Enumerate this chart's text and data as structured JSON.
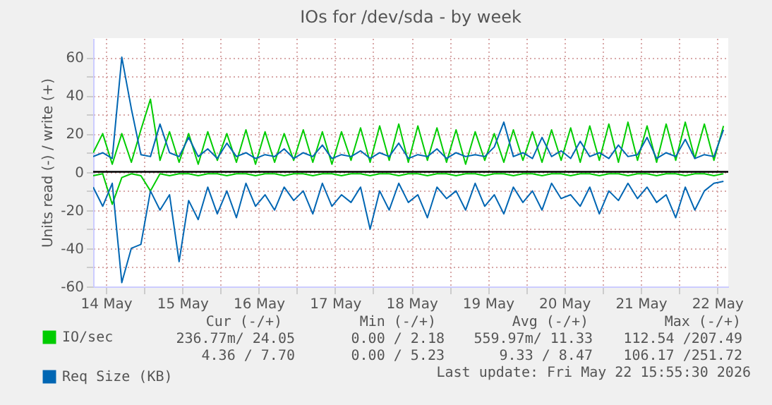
{
  "chart_data": {
    "type": "line",
    "title": "IOs for /dev/sda - by week",
    "ylabel": "Units read (-) / write (+)",
    "x": [
      "2026-05-14T08:00",
      "2026-05-14T11:00",
      "2026-05-14T14:00",
      "2026-05-14T17:00",
      "2026-05-14T20:00",
      "2026-05-14T23:00",
      "2026-05-15T02:00",
      "2026-05-15T05:00",
      "2026-05-15T08:00",
      "2026-05-15T11:00",
      "2026-05-15T14:00",
      "2026-05-15T17:00",
      "2026-05-15T20:00",
      "2026-05-15T23:00",
      "2026-05-16T02:00",
      "2026-05-16T05:00",
      "2026-05-16T08:00",
      "2026-05-16T11:00",
      "2026-05-16T14:00",
      "2026-05-16T17:00",
      "2026-05-16T20:00",
      "2026-05-16T23:00",
      "2026-05-17T02:00",
      "2026-05-17T05:00",
      "2026-05-17T08:00",
      "2026-05-17T11:00",
      "2026-05-17T14:00",
      "2026-05-17T17:00",
      "2026-05-17T20:00",
      "2026-05-17T23:00",
      "2026-05-18T02:00",
      "2026-05-18T05:00",
      "2026-05-18T08:00",
      "2026-05-18T11:00",
      "2026-05-18T14:00",
      "2026-05-18T17:00",
      "2026-05-18T20:00",
      "2026-05-18T23:00",
      "2026-05-19T02:00",
      "2026-05-19T05:00",
      "2026-05-19T08:00",
      "2026-05-19T11:00",
      "2026-05-19T14:00",
      "2026-05-19T17:00",
      "2026-05-19T20:00",
      "2026-05-19T23:00",
      "2026-05-20T02:00",
      "2026-05-20T05:00",
      "2026-05-20T08:00",
      "2026-05-20T11:00",
      "2026-05-20T14:00",
      "2026-05-20T17:00",
      "2026-05-20T20:00",
      "2026-05-20T23:00",
      "2026-05-21T02:00",
      "2026-05-21T05:00",
      "2026-05-21T08:00",
      "2026-05-21T11:00",
      "2026-05-21T14:00",
      "2026-05-21T17:00",
      "2026-05-21T20:00",
      "2026-05-21T23:00",
      "2026-05-22T02:00",
      "2026-05-22T05:00",
      "2026-05-22T08:00",
      "2026-05-22T11:00",
      "2026-05-22T14:00"
    ],
    "series": [
      {
        "name": "IO/sec",
        "color": "#00cc00",
        "values": [
          10,
          20,
          4,
          20,
          5,
          22,
          38,
          6,
          21,
          5,
          20,
          4,
          21,
          6,
          20,
          5,
          22,
          4,
          21,
          5,
          20,
          6,
          22,
          5,
          21,
          4,
          21,
          6,
          23,
          5,
          24,
          6,
          25,
          5,
          24,
          6,
          23,
          5,
          22,
          4,
          21,
          6,
          20,
          5,
          22,
          6,
          21,
          5,
          22,
          6,
          23,
          5,
          24,
          6,
          25,
          5,
          26,
          6,
          24,
          5,
          25,
          6,
          26,
          7,
          25,
          6,
          24
        ]
      },
      {
        "color": "#00cc00",
        "values": [
          -2,
          -1,
          -17,
          -3,
          -1,
          -2,
          -10,
          -1,
          -2,
          -1,
          -1,
          -2,
          -1,
          -1,
          -2,
          -1,
          -1,
          -2,
          -1,
          -1,
          -2,
          -1,
          -1,
          -2,
          -1,
          -1,
          -2,
          -1,
          -1,
          -2,
          -1,
          -1,
          -2,
          -1,
          -1,
          -2,
          -1,
          -1,
          -2,
          -1,
          -1,
          -2,
          -1,
          -1,
          -2,
          -1,
          -1,
          -2,
          -1,
          -1,
          -2,
          -1,
          -1,
          -2,
          -1,
          -1,
          -2,
          -1,
          -1,
          -2,
          -1,
          -1,
          -2,
          -1,
          -1,
          -2,
          -1
        ]
      },
      {
        "name": "Req Size (KB)",
        "color": "#0066b3",
        "values": [
          8,
          10,
          7,
          60,
          33,
          9,
          8,
          25,
          10,
          8,
          18,
          8,
          12,
          7,
          15,
          8,
          10,
          7,
          9,
          8,
          12,
          7,
          10,
          8,
          14,
          7,
          9,
          8,
          11,
          7,
          10,
          8,
          15,
          7,
          9,
          8,
          12,
          7,
          10,
          8,
          9,
          8,
          13,
          26,
          8,
          10,
          7,
          18,
          8,
          11,
          7,
          16,
          8,
          10,
          7,
          14,
          8,
          9,
          18,
          7,
          10,
          8,
          17,
          7,
          9,
          8,
          22
        ]
      },
      {
        "color": "#0066b3",
        "values": [
          -8,
          -18,
          -6,
          -58,
          -40,
          -38,
          -10,
          -20,
          -12,
          -47,
          -15,
          -25,
          -8,
          -22,
          -10,
          -24,
          -6,
          -18,
          -12,
          -20,
          -8,
          -15,
          -10,
          -22,
          -6,
          -18,
          -12,
          -16,
          -8,
          -30,
          -10,
          -20,
          -6,
          -16,
          -12,
          -24,
          -8,
          -14,
          -10,
          -20,
          -6,
          -18,
          -12,
          -22,
          -8,
          -16,
          -10,
          -20,
          -6,
          -14,
          -12,
          -18,
          -8,
          -22,
          -10,
          -15,
          -6,
          -14,
          -8,
          -16,
          -12,
          -24,
          -8,
          -20,
          -10,
          -6,
          -5
        ]
      }
    ],
    "xlim": [
      "2026-05-14T08:00",
      "2026-05-22T15:30"
    ],
    "xticks": [
      {
        "value": "2026-05-14T12:00",
        "label": "14 May"
      },
      {
        "value": "2026-05-15T00:00",
        "label": null
      },
      {
        "value": "2026-05-15T12:00",
        "label": "15 May"
      },
      {
        "value": "2026-05-16T00:00",
        "label": null
      },
      {
        "value": "2026-05-16T12:00",
        "label": "16 May"
      },
      {
        "value": "2026-05-17T00:00",
        "label": null
      },
      {
        "value": "2026-05-17T12:00",
        "label": "17 May"
      },
      {
        "value": "2026-05-18T00:00",
        "label": null
      },
      {
        "value": "2026-05-18T12:00",
        "label": "18 May"
      },
      {
        "value": "2026-05-19T00:00",
        "label": null
      },
      {
        "value": "2026-05-19T12:00",
        "label": "19 May"
      },
      {
        "value": "2026-05-20T00:00",
        "label": null
      },
      {
        "value": "2026-05-20T12:00",
        "label": "20 May"
      },
      {
        "value": "2026-05-21T00:00",
        "label": null
      },
      {
        "value": "2026-05-21T12:00",
        "label": "21 May"
      },
      {
        "value": "2026-05-22T00:00",
        "label": null
      },
      {
        "value": "2026-05-22T12:00",
        "label": "22 May"
      }
    ],
    "ylim": [
      -60,
      70
    ],
    "yticks": [
      -60,
      {
        "value": -50,
        "label": null
      },
      -40,
      {
        "value": -30,
        "label": null
      },
      -20,
      {
        "value": -10,
        "label": null
      },
      0,
      {
        "value": 10,
        "label": null
      },
      20,
      {
        "value": 30,
        "label": null
      },
      40,
      {
        "value": 50,
        "label": null
      },
      60
    ],
    "grid": true,
    "legend": "bottom left",
    "ref_lines": [
      {
        "axis": "y",
        "value": 0,
        "color": "#000000"
      }
    ],
    "annotations": [
      "Cur (-/+)",
      "Min (-/+)",
      "Avg (-/+)",
      "Max (-/+)",
      "236.77m/ 24.05",
      "0.00 /  2.18",
      "559.97m/ 11.33",
      "112.54 /207.49",
      "4.36 /  7.70",
      "0.00 /  5.23",
      "9.33 /  8.47",
      "106.17 /251.72",
      "Last update: Fri May 22 15:55:30 2026"
    ]
  }
}
